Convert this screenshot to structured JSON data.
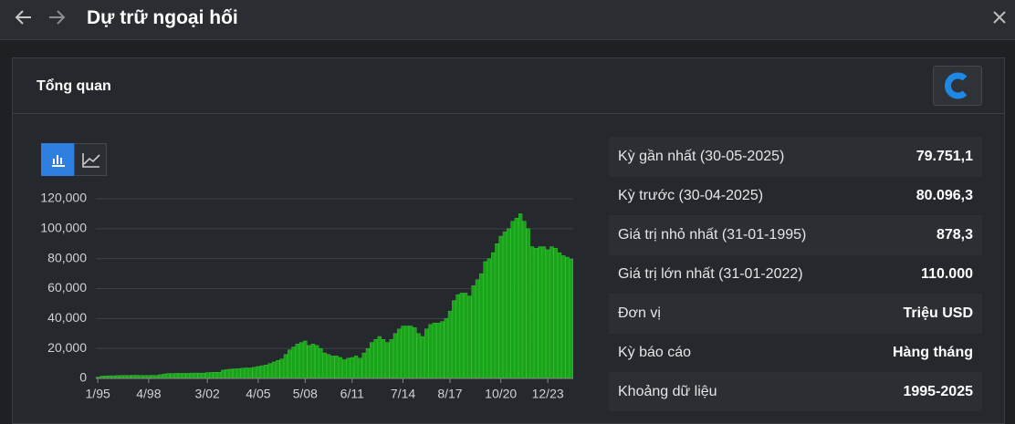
{
  "header": {
    "title": "Dự trữ ngoại hối"
  },
  "panel": {
    "title": "Tổng quan"
  },
  "chart_data": {
    "type": "bar",
    "color": "#19a319",
    "categories": [
      "1/95",
      null,
      null,
      null,
      null,
      null,
      null,
      null,
      null,
      null,
      null,
      null,
      null,
      "4/98",
      null,
      null,
      null,
      null,
      null,
      null,
      null,
      null,
      null,
      null,
      null,
      null,
      null,
      null,
      "3/02",
      null,
      null,
      null,
      null,
      null,
      null,
      null,
      null,
      null,
      null,
      null,
      null,
      "4/05",
      null,
      null,
      null,
      null,
      null,
      null,
      null,
      null,
      null,
      null,
      null,
      "5/08",
      null,
      null,
      null,
      null,
      null,
      null,
      null,
      null,
      null,
      null,
      null,
      "6/11",
      null,
      null,
      null,
      null,
      null,
      null,
      null,
      null,
      null,
      null,
      null,
      null,
      "7/14",
      null,
      null,
      null,
      null,
      null,
      null,
      null,
      null,
      null,
      null,
      null,
      "8/17",
      null,
      null,
      null,
      null,
      null,
      null,
      null,
      null,
      null,
      null,
      null,
      null,
      "10/20",
      null,
      null,
      null,
      null,
      null,
      null,
      null,
      null,
      null,
      null,
      null,
      "12/23",
      null,
      null,
      null,
      null,
      null,
      null
    ],
    "values": [
      878,
      1500,
      1700,
      1800,
      1800,
      1900,
      2000,
      2000,
      2000,
      2100,
      2100,
      2000,
      2000,
      2000,
      2100,
      2000,
      2500,
      3000,
      3300,
      3300,
      3400,
      3400,
      3400,
      3400,
      3600,
      3600,
      3600,
      3600,
      3900,
      4000,
      4100,
      4100,
      5500,
      6000,
      6200,
      6400,
      6500,
      6800,
      7000,
      7000,
      7500,
      8000,
      8500,
      9000,
      10000,
      11000,
      12000,
      13000,
      16000,
      19000,
      21000,
      23000,
      24000,
      25000,
      22000,
      23000,
      22000,
      20000,
      17000,
      16000,
      15000,
      15000,
      14000,
      12500,
      13500,
      14000,
      15000,
      13500,
      17000,
      20000,
      24000,
      26000,
      28000,
      26000,
      24000,
      26000,
      30000,
      33000,
      35000,
      35000,
      35000,
      34000,
      30000,
      28000,
      33000,
      36000,
      37000,
      37000,
      38000,
      40000,
      45000,
      52000,
      56000,
      57000,
      57000,
      55000,
      62000,
      66000,
      70000,
      78000,
      80000,
      84000,
      90000,
      95000,
      98000,
      100000,
      105000,
      107000,
      110000,
      105000,
      100000,
      88000,
      87000,
      88000,
      88000,
      86000,
      88000,
      87000,
      84000,
      82000,
      81000,
      79751
    ],
    "ylim": [
      0,
      120000
    ],
    "yticks": [
      0,
      {
        "value": 20000,
        "label": "20,000"
      },
      {
        "value": 40000,
        "label": "40,000"
      },
      {
        "value": 60000,
        "label": "60,000"
      },
      {
        "value": 80000,
        "label": "80,000"
      },
      {
        "value": 100000,
        "label": "100,000"
      },
      {
        "value": 120000,
        "label": "120,000"
      }
    ],
    "grid": true
  },
  "stats": [
    {
      "label": "Kỳ gần nhất (30-05-2025)",
      "value": "79.751,1"
    },
    {
      "label": "Kỳ trước (30-04-2025)",
      "value": "80.096,3"
    },
    {
      "label": "Giá trị nhỏ nhất (31-01-1995)",
      "value": "878,3"
    },
    {
      "label": "Giá trị lớn nhất (31-01-2022)",
      "value": "110.000"
    },
    {
      "label": "Đơn vị",
      "value": "Triệu USD"
    },
    {
      "label": "Kỳ báo cáo",
      "value": "Hàng tháng"
    },
    {
      "label": "Khoảng dữ liệu",
      "value": "1995-2025"
    }
  ]
}
